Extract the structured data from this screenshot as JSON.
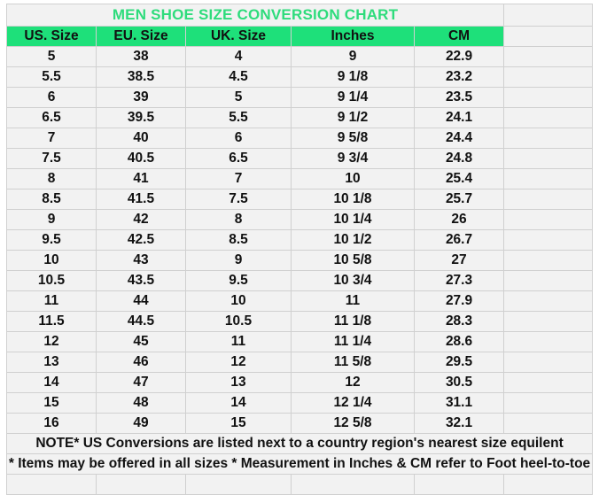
{
  "title": "MEN SHOE SIZE CONVERSION CHART",
  "columns": [
    "US. Size",
    "EU. Size",
    "UK. Size",
    "Inches",
    "CM"
  ],
  "rows": [
    [
      "5",
      "38",
      "4",
      "9",
      "22.9"
    ],
    [
      "5.5",
      "38.5",
      "4.5",
      "9 1/8",
      "23.2"
    ],
    [
      "6",
      "39",
      "5",
      "9 1/4",
      "23.5"
    ],
    [
      "6.5",
      "39.5",
      "5.5",
      "9 1/2",
      "24.1"
    ],
    [
      "7",
      "40",
      "6",
      "9 5/8",
      "24.4"
    ],
    [
      "7.5",
      "40.5",
      "6.5",
      "9 3/4",
      "24.8"
    ],
    [
      "8",
      "41",
      "7",
      "10",
      "25.4"
    ],
    [
      "8.5",
      "41.5",
      "7.5",
      "10 1/8",
      "25.7"
    ],
    [
      "9",
      "42",
      "8",
      "10 1/4",
      "26"
    ],
    [
      "9.5",
      "42.5",
      "8.5",
      "10 1/2",
      "26.7"
    ],
    [
      "10",
      "43",
      "9",
      "10 5/8",
      "27"
    ],
    [
      "10.5",
      "43.5",
      "9.5",
      "10 3/4",
      "27.3"
    ],
    [
      "11",
      "44",
      "10",
      "11",
      "27.9"
    ],
    [
      "11.5",
      "44.5",
      "10.5",
      "11 1/8",
      "28.3"
    ],
    [
      "12",
      "45",
      "11",
      "11 1/4",
      "28.6"
    ],
    [
      "13",
      "46",
      "12",
      "11 5/8",
      "29.5"
    ],
    [
      "14",
      "47",
      "13",
      "12",
      "30.5"
    ],
    [
      "15",
      "48",
      "14",
      "12 1/4",
      "31.1"
    ],
    [
      "16",
      "49",
      "15",
      "12 5/8",
      "32.1"
    ]
  ],
  "notes": [
    "NOTE* US Conversions are listed next to a country region's nearest size equilent",
    "* Items may be offered in all sizes * Measurement in Inches & CM refer to Foot heel-to-toe"
  ],
  "colors": {
    "header_bg": "#1ee07a",
    "title_text": "#2edc7c",
    "cell_bg": "#f2f2f2",
    "grid": "#d0d0d0"
  }
}
